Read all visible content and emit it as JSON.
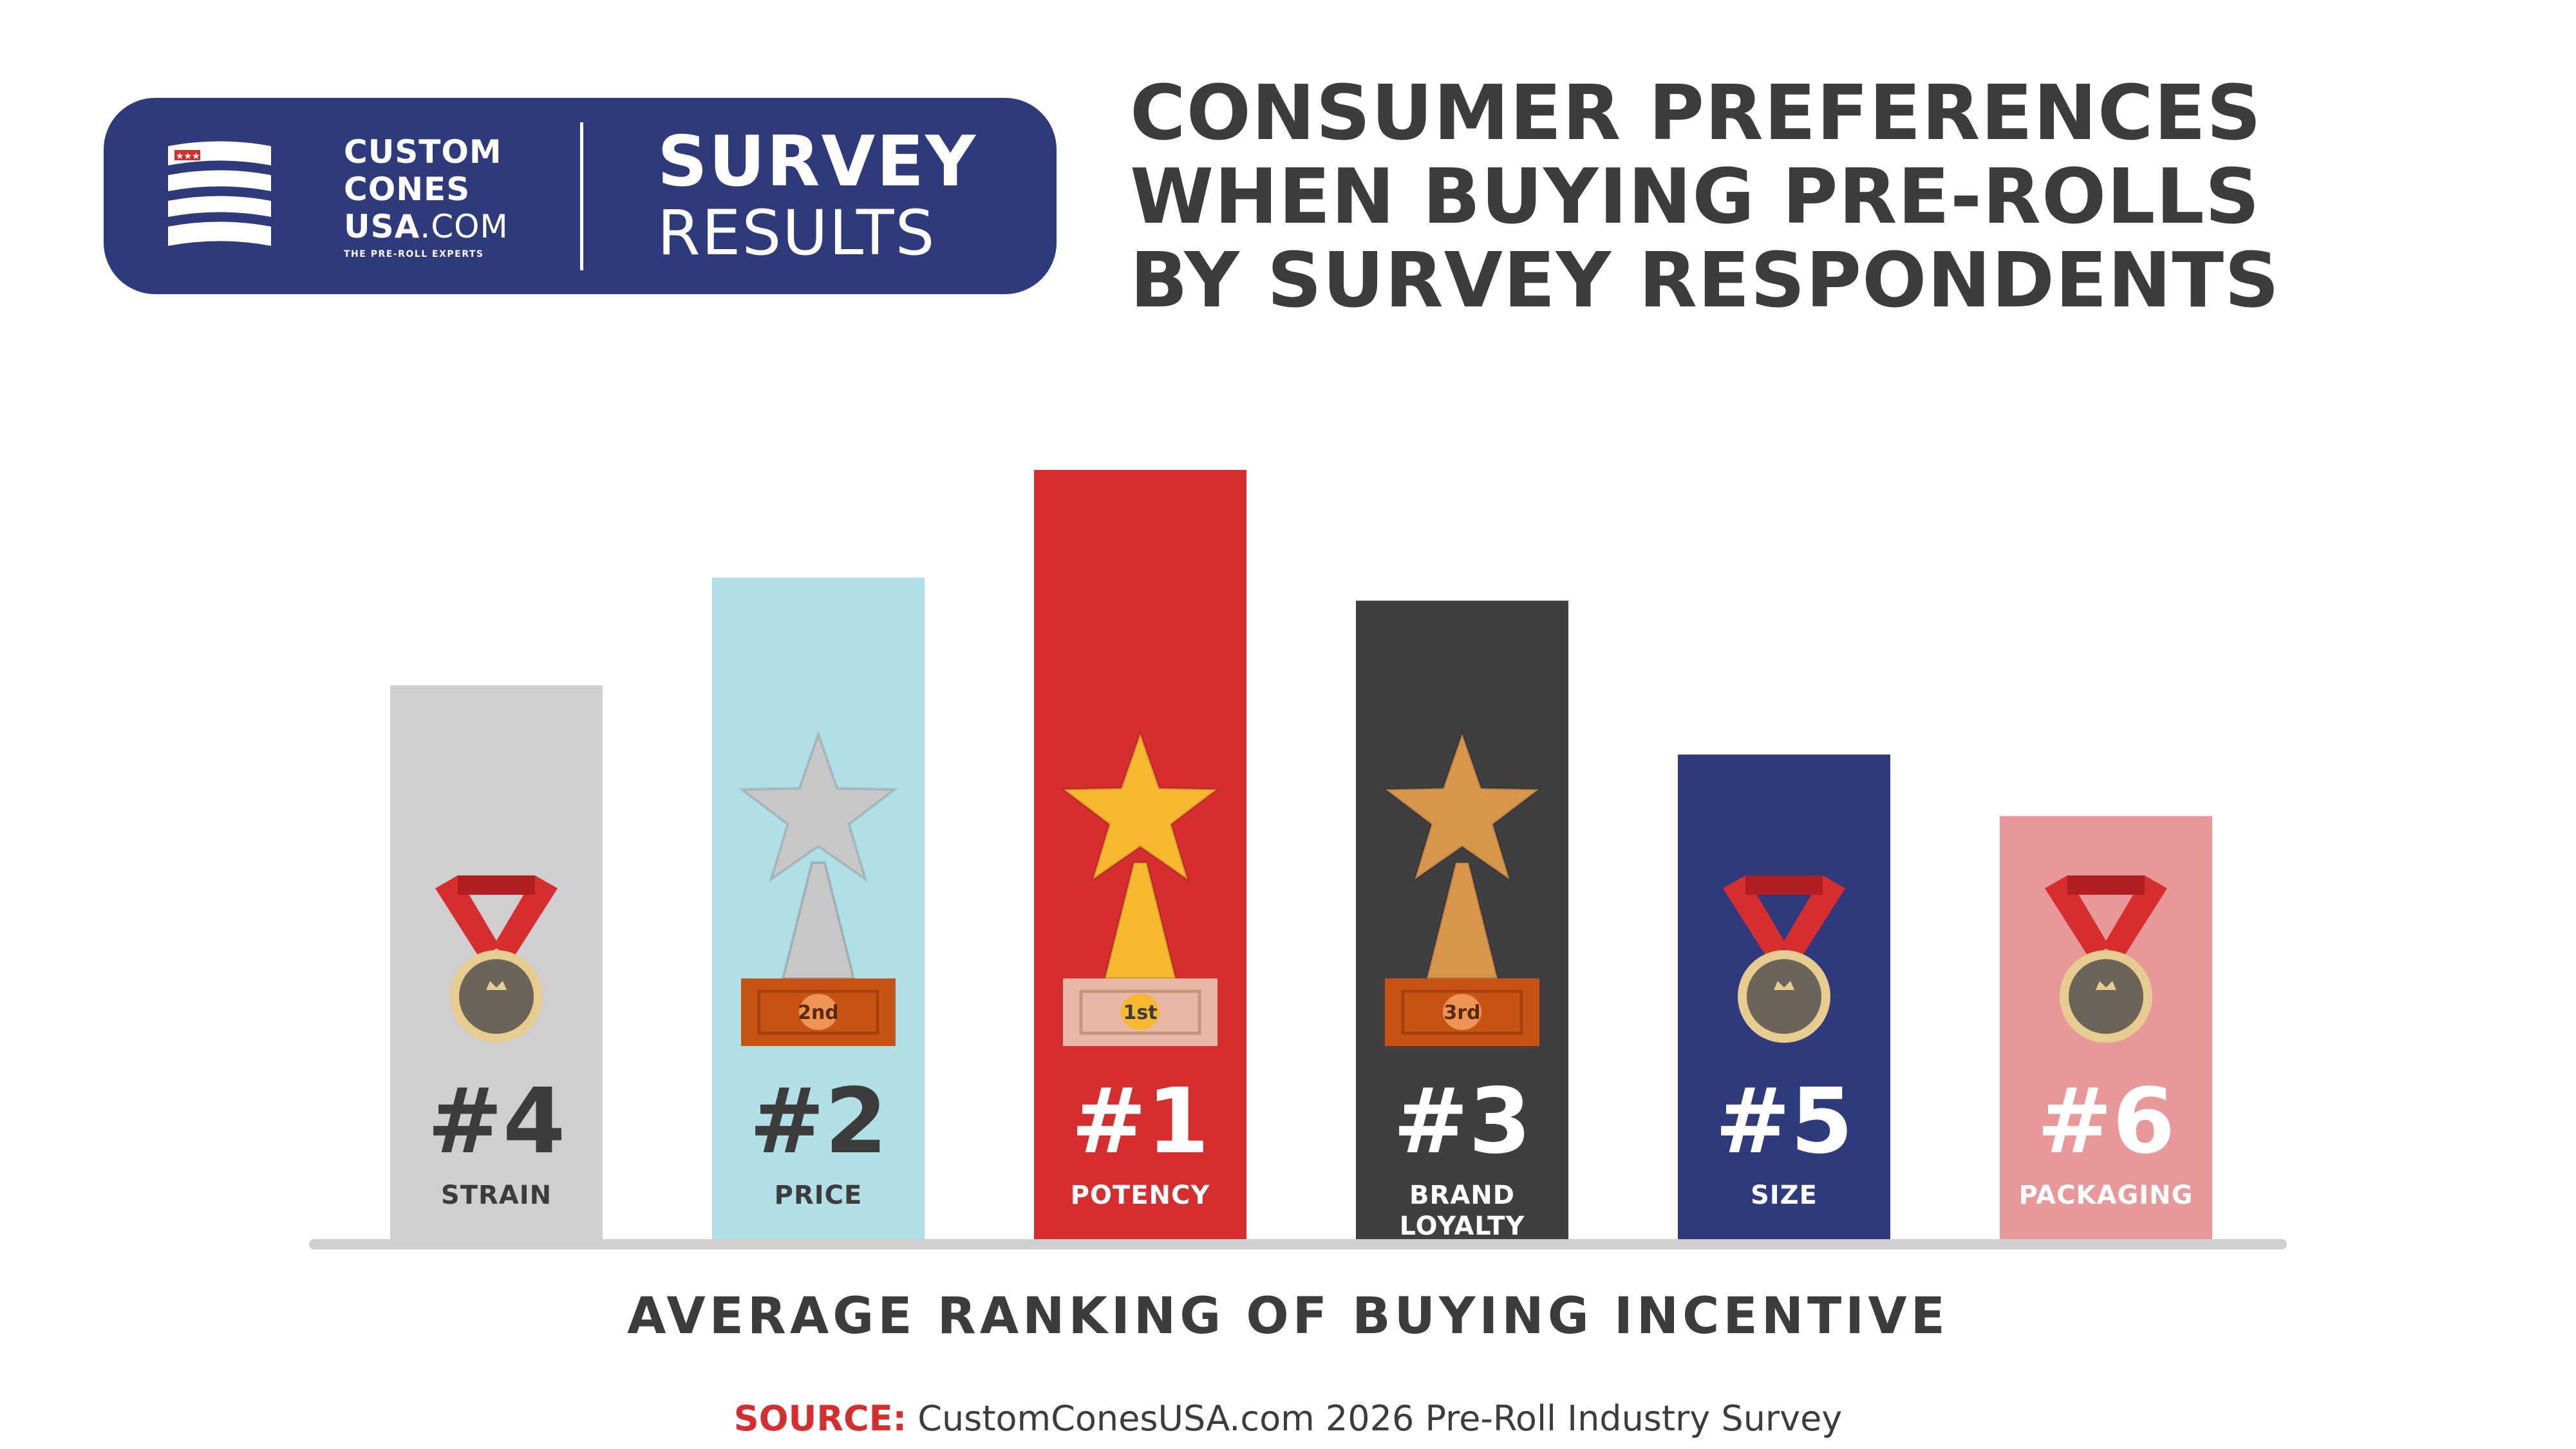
{
  "header": {
    "logo_lines": [
      "CUSTOM",
      "CONES",
      "USA",
      ".COM"
    ],
    "logo_tagline": "THE PRE-ROLL EXPERTS",
    "badge_line1": "SURVEY",
    "badge_line2": "RESULTS",
    "title": "CONSUMER PREFERENCES\nWHEN BUYING PRE-ROLLS\nBY SURVEY RESPONDENTS"
  },
  "footer": {
    "source_label": "SOURCE:",
    "source_text": "CustomConesUSA.com 2026 Pre-Roll Industry Survey"
  },
  "chart_data": {
    "type": "bar",
    "title": "CONSUMER PREFERENCES WHEN BUYING PRE-ROLLS BY SURVEY RESPONDENTS",
    "xlabel": "AVERAGE RANKING OF BUYING INCENTIVE",
    "ylabel": "",
    "ylim": [
      0,
      6
    ],
    "grid": false,
    "categories": [
      "STRAIN",
      "PRICE",
      "POTENCY",
      "BRAND\nLOYALTY",
      "SIZE",
      "PACKAGING"
    ],
    "ranks": [
      "#4",
      "#2",
      "#1",
      "#3",
      "#5",
      "#6"
    ],
    "values": [
      3.6,
      4.3,
      5.0,
      4.15,
      3.15,
      2.75
    ],
    "colors": [
      "#cfcfd1",
      "#b0e0e6",
      "#d62d2f",
      "#3f3f41",
      "#2e3a7c",
      "#e89898"
    ],
    "rank_colors": [
      "#3c3c3c",
      "#3c3c3c",
      "#ffffff",
      "#ffffff",
      "#ffffff",
      "#ffffff"
    ],
    "label_colors": [
      "#3c3c3c",
      "#3c3c3c",
      "#ffffff",
      "#ffffff",
      "#ffffff",
      "#ffffff"
    ],
    "icons": [
      "medal-icon",
      "silver-trophy-icon",
      "gold-trophy-icon",
      "bronze-trophy-icon",
      "medal-icon",
      "medal-icon"
    ],
    "trophy_labels": [
      "",
      "2nd",
      "1st",
      "3rd",
      "",
      ""
    ],
    "trophy_colors": [
      "",
      "#c7c7c9",
      "#f5b82e",
      "#d8964a",
      "",
      ""
    ],
    "baseline_color": "#cfcfd1"
  }
}
